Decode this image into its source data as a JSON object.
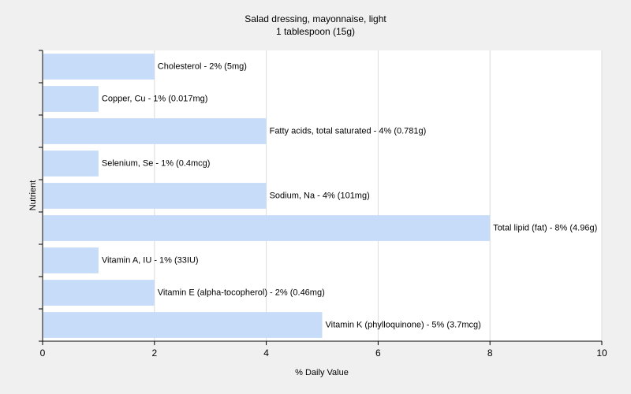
{
  "chart_data": {
    "type": "bar",
    "orientation": "horizontal",
    "title": "Salad dressing, mayonnaise, light",
    "subtitle": "1 tablespoon (15g)",
    "xlabel": "% Daily Value",
    "ylabel": "Nutrient",
    "xlim": [
      0,
      10
    ],
    "xticks": [
      "0",
      "2",
      "4",
      "6",
      "8",
      "10"
    ],
    "grid": true,
    "bar_color": "#c6dcf9",
    "bars": [
      {
        "label": "Cholesterol - 2% (5mg)",
        "value": 2
      },
      {
        "label": "Copper, Cu - 1% (0.017mg)",
        "value": 1
      },
      {
        "label": "Fatty acids, total saturated - 4% (0.781g)",
        "value": 4
      },
      {
        "label": "Selenium, Se - 1% (0.4mcg)",
        "value": 1
      },
      {
        "label": "Sodium, Na - 4% (101mg)",
        "value": 4
      },
      {
        "label": "Total lipid (fat) - 8% (4.96g)",
        "value": 8
      },
      {
        "label": "Vitamin A, IU - 1% (33IU)",
        "value": 1
      },
      {
        "label": "Vitamin E (alpha-tocopherol) - 2% (0.46mg)",
        "value": 2
      },
      {
        "label": "Vitamin K (phylloquinone) - 5% (3.7mcg)",
        "value": 5
      }
    ]
  }
}
